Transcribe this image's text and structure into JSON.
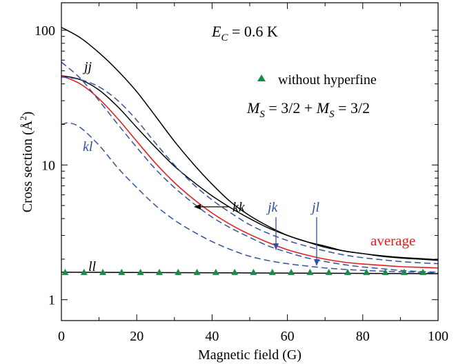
{
  "chart_data": {
    "type": "line",
    "xlabel": "Magnetic field (G)",
    "ylabel_main": "Cross section (",
    "ylabel_unit": "Å",
    "ylabel_sup": "2",
    "ylabel_close": ")",
    "x_ticks": [
      "0",
      "20",
      "40",
      "60",
      "80",
      "100"
    ],
    "y_ticks": [
      "1",
      "10",
      "100"
    ],
    "xlim": [
      0,
      100
    ],
    "ylim": [
      0.7,
      160
    ],
    "y_scale": "log",
    "grid": false,
    "annotation_ec": {
      "E": "E",
      "sub": "C",
      "rest": " = 0.6 K"
    },
    "annotation_ms": {
      "M1": "M",
      "sub1": "S",
      "mid": " = 3/2 + ",
      "M2": "M",
      "sub2": "S",
      "end": " = 3/2"
    },
    "legend": {
      "marker_label": "without hyperfine",
      "position": "top-right"
    },
    "labels": {
      "jj": "jj",
      "kl": "kl",
      "kk": "kk",
      "jk": "jk",
      "jl": "jl",
      "ll": "ll",
      "average": "average"
    },
    "colors": {
      "black": "#000000",
      "blue": "#3050a0",
      "red": "#e02020",
      "green": "#1a8a4a"
    },
    "series": [
      {
        "key": "jj",
        "color": "black",
        "dash": false,
        "points": [
          [
            0,
            105
          ],
          [
            5,
            88
          ],
          [
            10,
            68
          ],
          [
            15,
            50
          ],
          [
            20,
            35
          ],
          [
            25,
            23
          ],
          [
            30,
            15
          ],
          [
            35,
            10.2
          ],
          [
            40,
            7.2
          ],
          [
            45,
            5.3
          ],
          [
            50,
            4.2
          ],
          [
            55,
            3.5
          ],
          [
            60,
            3.0
          ],
          [
            65,
            2.7
          ],
          [
            70,
            2.45
          ],
          [
            75,
            2.3
          ],
          [
            80,
            2.2
          ],
          [
            85,
            2.12
          ],
          [
            90,
            2.06
          ],
          [
            95,
            2.02
          ],
          [
            100,
            1.98
          ]
        ]
      },
      {
        "key": "kk",
        "color": "black",
        "dash": false,
        "points": [
          [
            0,
            46
          ],
          [
            5,
            43
          ],
          [
            10,
            36
          ],
          [
            15,
            27
          ],
          [
            20,
            19
          ],
          [
            25,
            13.5
          ],
          [
            30,
            9.8
          ],
          [
            35,
            7.5
          ],
          [
            40,
            5.9
          ],
          [
            45,
            4.8
          ],
          [
            50,
            4.0
          ],
          [
            55,
            3.4
          ],
          [
            60,
            3.0
          ],
          [
            65,
            2.7
          ],
          [
            70,
            2.5
          ],
          [
            75,
            2.3
          ],
          [
            80,
            2.2
          ],
          [
            85,
            2.1
          ],
          [
            90,
            2.04
          ],
          [
            95,
            2.0
          ],
          [
            100,
            1.96
          ]
        ]
      },
      {
        "key": "average",
        "color": "red",
        "dash": false,
        "points": [
          [
            0,
            46
          ],
          [
            5,
            40
          ],
          [
            10,
            31
          ],
          [
            15,
            22
          ],
          [
            20,
            15
          ],
          [
            25,
            10.3
          ],
          [
            30,
            7.4
          ],
          [
            35,
            5.6
          ],
          [
            40,
            4.4
          ],
          [
            45,
            3.6
          ],
          [
            50,
            3.05
          ],
          [
            55,
            2.65
          ],
          [
            60,
            2.35
          ],
          [
            65,
            2.15
          ],
          [
            70,
            2.0
          ],
          [
            75,
            1.9
          ],
          [
            80,
            1.84
          ],
          [
            85,
            1.8
          ],
          [
            90,
            1.76
          ],
          [
            95,
            1.74
          ],
          [
            100,
            1.72
          ]
        ]
      },
      {
        "key": "jk",
        "color": "blue",
        "dash": true,
        "points": [
          [
            0,
            45
          ],
          [
            5,
            43
          ],
          [
            10,
            38
          ],
          [
            15,
            30
          ],
          [
            20,
            21.5
          ],
          [
            25,
            14.5
          ],
          [
            30,
            10
          ],
          [
            35,
            7.2
          ],
          [
            40,
            5.5
          ],
          [
            45,
            4.4
          ],
          [
            50,
            3.6
          ],
          [
            55,
            3.1
          ],
          [
            60,
            2.75
          ],
          [
            65,
            2.5
          ],
          [
            70,
            2.3
          ],
          [
            75,
            2.15
          ],
          [
            80,
            2.05
          ],
          [
            85,
            1.98
          ],
          [
            90,
            1.92
          ],
          [
            95,
            1.88
          ],
          [
            100,
            1.85
          ]
        ]
      },
      {
        "key": "jl",
        "color": "blue",
        "dash": true,
        "points": [
          [
            0,
            58
          ],
          [
            5,
            44
          ],
          [
            10,
            30
          ],
          [
            15,
            20
          ],
          [
            20,
            13.5
          ],
          [
            25,
            9.3
          ],
          [
            30,
            6.8
          ],
          [
            35,
            5.2
          ],
          [
            40,
            4.1
          ],
          [
            45,
            3.4
          ],
          [
            50,
            2.9
          ],
          [
            55,
            2.5
          ],
          [
            60,
            2.25
          ],
          [
            65,
            2.05
          ],
          [
            70,
            1.92
          ],
          [
            75,
            1.82
          ],
          [
            80,
            1.75
          ],
          [
            85,
            1.7
          ],
          [
            90,
            1.65
          ],
          [
            95,
            1.62
          ],
          [
            100,
            1.6
          ]
        ]
      },
      {
        "key": "kl",
        "color": "blue",
        "dash": true,
        "points": [
          [
            0,
            20
          ],
          [
            2,
            20.5
          ],
          [
            5,
            19
          ],
          [
            10,
            14
          ],
          [
            15,
            9.5
          ],
          [
            20,
            6.8
          ],
          [
            25,
            5.0
          ],
          [
            30,
            3.9
          ],
          [
            35,
            3.2
          ],
          [
            40,
            2.7
          ],
          [
            45,
            2.35
          ],
          [
            50,
            2.1
          ],
          [
            55,
            1.95
          ],
          [
            60,
            1.85
          ],
          [
            65,
            1.78
          ],
          [
            70,
            1.72
          ],
          [
            75,
            1.68
          ],
          [
            80,
            1.65
          ],
          [
            85,
            1.63
          ],
          [
            90,
            1.61
          ],
          [
            95,
            1.6
          ],
          [
            100,
            1.58
          ]
        ]
      },
      {
        "key": "ll",
        "color": "black",
        "dash": false,
        "points": [
          [
            0,
            1.6
          ],
          [
            100,
            1.56
          ]
        ]
      }
    ],
    "triangles": {
      "name": "without hyperfine",
      "x": [
        1,
        6,
        11,
        16,
        21,
        26,
        31,
        36,
        41,
        46,
        51,
        56,
        61,
        66,
        71,
        76,
        81,
        86,
        91,
        96
      ],
      "y": [
        1.6,
        1.6,
        1.6,
        1.6,
        1.6,
        1.6,
        1.6,
        1.6,
        1.6,
        1.6,
        1.6,
        1.6,
        1.6,
        1.6,
        1.6,
        1.6,
        1.6,
        1.6,
        1.6,
        1.6
      ]
    }
  }
}
